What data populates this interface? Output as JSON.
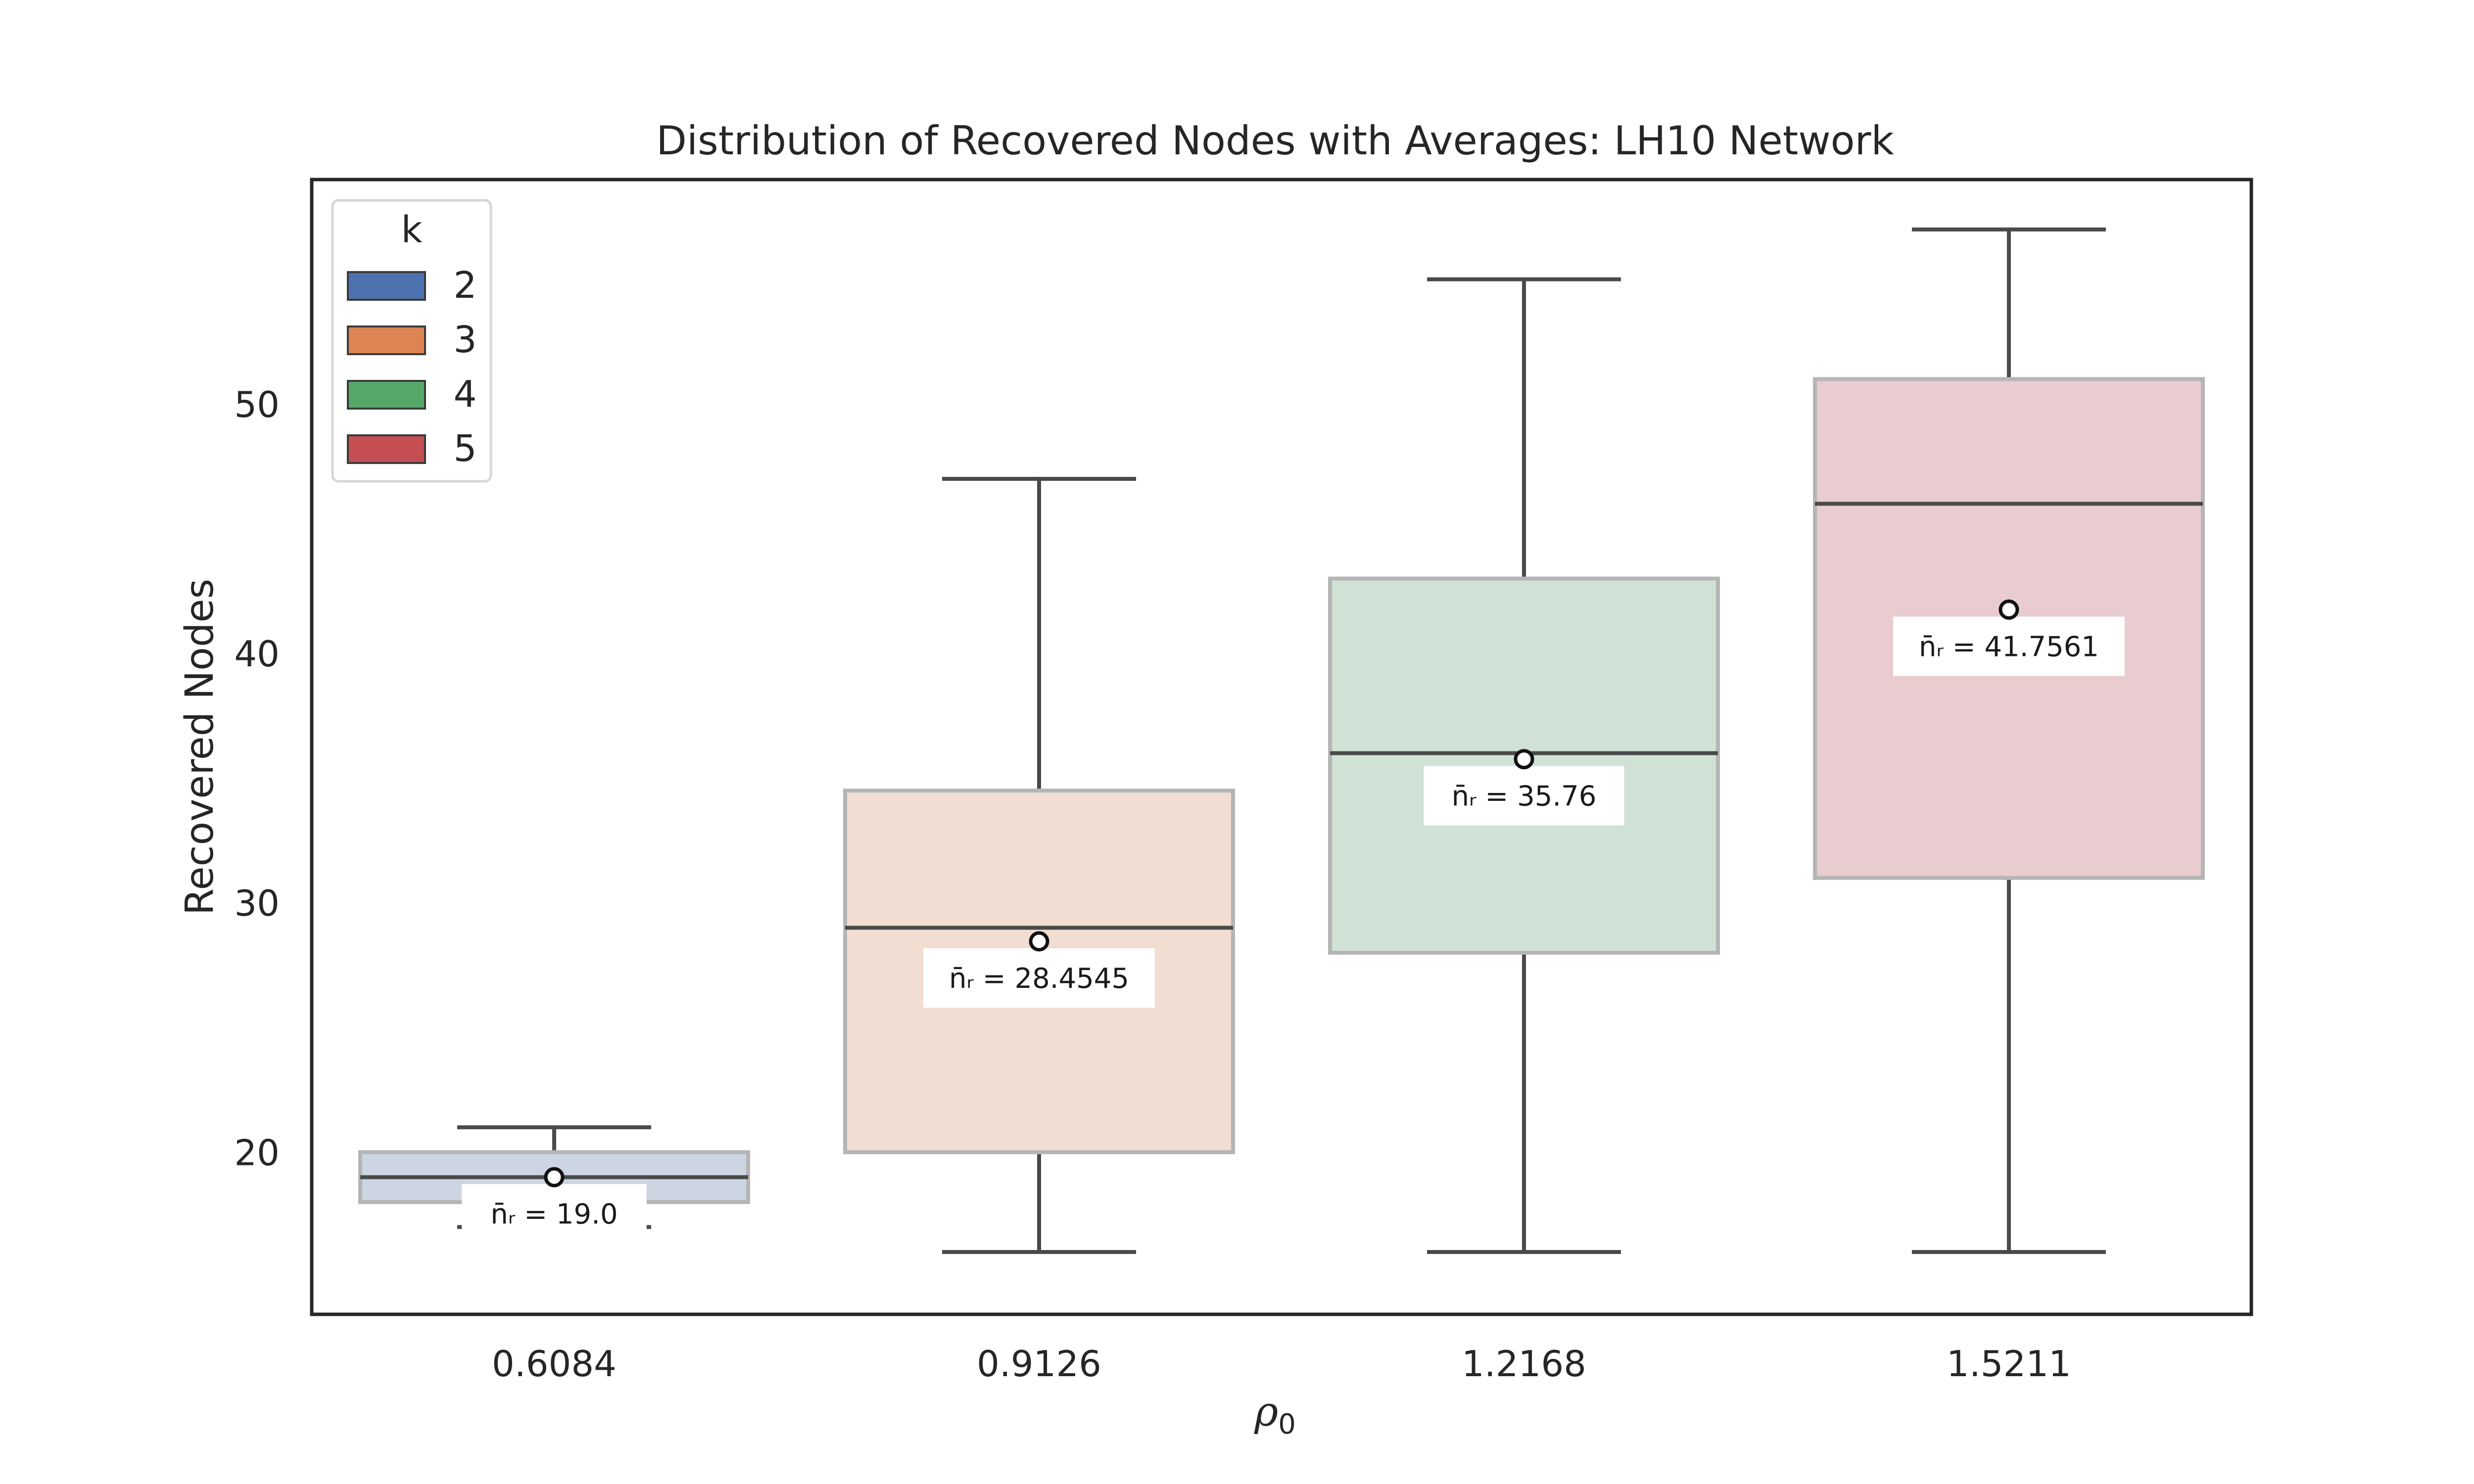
{
  "chart_data": {
    "type": "box",
    "title": "Distribution of Recovered Nodes with Averages: LH10 Network",
    "xlabel": "ρ",
    "xlabel_subscript": "0",
    "ylabel": "Recovered Nodes",
    "categories": [
      "0.6084",
      "0.9126",
      "1.2168",
      "1.5211"
    ],
    "y_ticks": [
      20,
      30,
      40,
      50
    ],
    "ylim": [
      13.5,
      59.0
    ],
    "grid": false,
    "legend": {
      "title": "k",
      "placement": "top-left",
      "entries": [
        {
          "label": "2",
          "color": "#4c72b0"
        },
        {
          "label": "3",
          "color": "#dd8452"
        },
        {
          "label": "4",
          "color": "#55a868"
        },
        {
          "label": "5",
          "color": "#c44e52"
        }
      ]
    },
    "boxes": [
      {
        "category": "0.6084",
        "k": "2",
        "whisker_low": 17,
        "q1": 18,
        "median": 19,
        "q3": 20,
        "whisker_high": 21,
        "mean": 19.0,
        "mean_label": "n̄ᵣ = 19.0",
        "fill": "#cdd5e3",
        "cap_low_visible": true
      },
      {
        "category": "0.9126",
        "k": "3",
        "whisker_low": 16,
        "q1": 20,
        "median": 29,
        "q3": 34.5,
        "whisker_high": 47,
        "mean": 28.4545,
        "mean_label": "n̄ᵣ = 28.4545",
        "fill": "#f1ddd1"
      },
      {
        "category": "1.2168",
        "k": "4",
        "whisker_low": 16,
        "q1": 28,
        "median": 36,
        "q3": 43,
        "whisker_high": 55,
        "mean": 35.76,
        "mean_label": "n̄ᵣ = 35.76",
        "fill": "#cfe2d5"
      },
      {
        "category": "1.5211",
        "k": "5",
        "whisker_low": 16,
        "q1": 31,
        "median": 46,
        "q3": 51,
        "whisker_high": 57,
        "mean": 41.7561,
        "mean_label": "n̄ᵣ = 41.7561",
        "fill": "#e8cccf"
      }
    ]
  }
}
